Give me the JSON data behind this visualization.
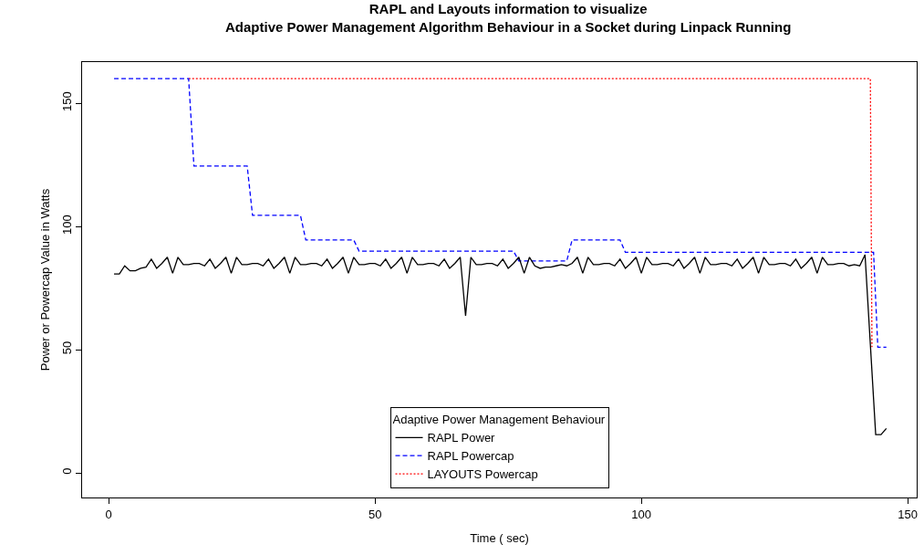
{
  "chart_data": {
    "type": "line",
    "title": "RAPL and Layouts information to visualize\nAdaptive Power Management Algorithm Behaviour in a Socket during Linpack Running",
    "xlabel": "Time ( sec)",
    "ylabel": "Power or Powercap Value in Watts",
    "legend_title": "Adaptive Power Management Behaviour",
    "xlim": [
      -5,
      151.7
    ],
    "xticks": [
      0,
      50,
      100,
      150
    ],
    "ylim": [
      -10,
      166.7
    ],
    "yticks": [
      0,
      50,
      100,
      150
    ],
    "grid": false,
    "legend": "bottom",
    "marker": "none",
    "series": [
      {
        "name": "RAPL Power",
        "color": "#000000",
        "line_style": "solid",
        "x": [
          1,
          2,
          3,
          4,
          5,
          6,
          7,
          8,
          9,
          10,
          11,
          12,
          13,
          14,
          15,
          16,
          17,
          18,
          19,
          20,
          21,
          22,
          23,
          24,
          25,
          26,
          27,
          28,
          29,
          30,
          31,
          32,
          33,
          34,
          35,
          36,
          37,
          38,
          39,
          40,
          41,
          42,
          43,
          44,
          45,
          46,
          47,
          48,
          49,
          50,
          51,
          52,
          53,
          54,
          55,
          56,
          57,
          58,
          59,
          60,
          61,
          62,
          63,
          64,
          65,
          66,
          67,
          68,
          69,
          70,
          71,
          72,
          73,
          74,
          75,
          76,
          77,
          78,
          79,
          80,
          81,
          82,
          83,
          84,
          85,
          86,
          87,
          88,
          89,
          90,
          91,
          92,
          93,
          94,
          95,
          96,
          97,
          98,
          99,
          100,
          101,
          102,
          103,
          104,
          105,
          106,
          107,
          108,
          109,
          110,
          111,
          112,
          113,
          114,
          115,
          116,
          117,
          118,
          119,
          120,
          121,
          122,
          123,
          124,
          125,
          126,
          127,
          128,
          129,
          130,
          131,
          132,
          133,
          134,
          135,
          136,
          137,
          138,
          139,
          140,
          141,
          142,
          144,
          145,
          146
        ],
        "values": [
          80.7,
          80.7,
          84,
          82,
          82,
          83,
          83.5,
          86.7,
          83,
          85,
          87.5,
          81,
          87.5,
          84.5,
          84.5,
          85,
          85,
          84,
          86.7,
          83,
          85,
          87.5,
          81,
          87.5,
          84.5,
          84.5,
          85,
          85,
          84,
          86.7,
          83,
          85,
          87.5,
          81,
          87.5,
          84.5,
          84.5,
          85,
          85,
          84,
          86.7,
          83,
          85,
          87.5,
          81,
          87.5,
          84.5,
          84.5,
          85,
          85,
          84,
          86.7,
          83,
          85,
          87.5,
          81,
          87.5,
          84.5,
          84.5,
          85,
          85,
          84,
          86.7,
          83,
          85,
          87.5,
          63.7,
          87.5,
          84.5,
          84.5,
          85,
          85,
          84,
          86.7,
          83,
          85,
          87.5,
          81,
          87.5,
          84,
          83,
          83.5,
          83.5,
          84,
          84.5,
          84,
          85,
          87.5,
          81,
          87.5,
          84.5,
          84.5,
          85,
          85,
          84,
          86.7,
          83,
          85,
          87.5,
          81,
          87.5,
          84.5,
          84.5,
          85,
          85,
          84,
          86.7,
          83,
          85,
          87.5,
          81,
          87.5,
          84.5,
          84.5,
          85,
          85,
          84,
          86.7,
          83,
          85,
          87.5,
          81,
          87.5,
          84.5,
          84.5,
          85,
          85,
          84,
          86.7,
          83,
          85,
          87.5,
          81,
          87.5,
          84.5,
          84.5,
          85,
          85,
          84,
          84.5,
          84,
          88.5,
          15.5,
          15.5,
          18
        ]
      },
      {
        "name": "RAPL Powercap",
        "color": "#0000ff",
        "line_style": "dashed",
        "x": [
          1,
          15,
          16,
          26,
          27,
          36,
          37,
          46,
          47,
          76,
          77,
          86,
          87,
          96,
          97,
          143.6,
          144.4,
          146
        ],
        "values": [
          160,
          160,
          124.5,
          124.5,
          104.5,
          104.5,
          94.5,
          94.5,
          90,
          90,
          86,
          86,
          94.5,
          94.5,
          89.5,
          89.5,
          51,
          51
        ]
      },
      {
        "name": "LAYOUTS Powercap",
        "color": "#ff0000",
        "line_style": "dotted",
        "x": [
          15,
          143,
          143.3
        ],
        "values": [
          160,
          160,
          51
        ]
      }
    ]
  }
}
